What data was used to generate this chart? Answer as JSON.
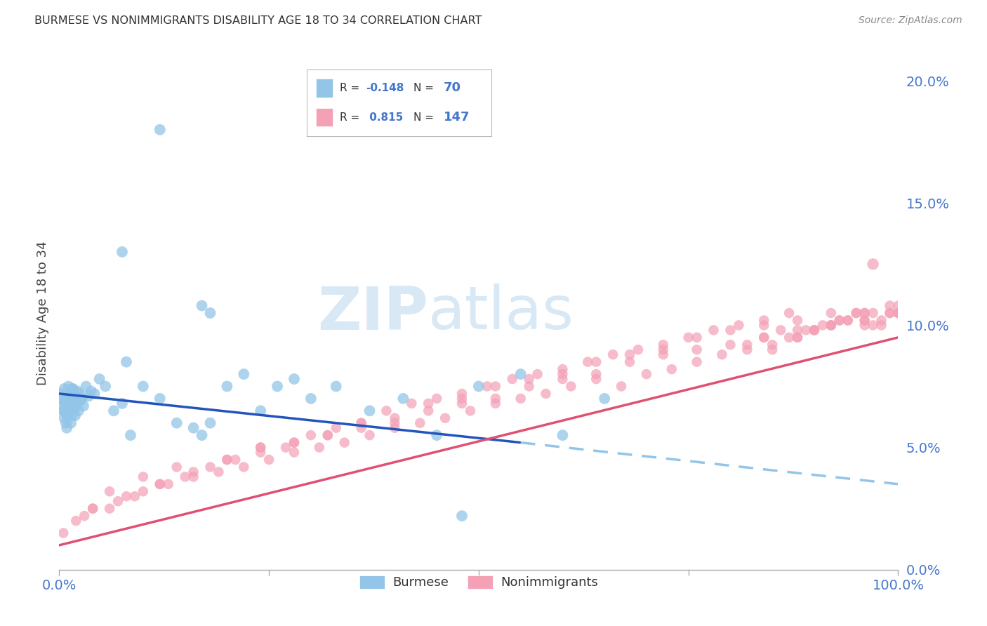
{
  "title": "BURMESE VS NONIMMIGRANTS DISABILITY AGE 18 TO 34 CORRELATION CHART",
  "source": "Source: ZipAtlas.com",
  "ylabel": "Disability Age 18 to 34",
  "y_tick_values": [
    0.0,
    5.0,
    10.0,
    15.0,
    20.0
  ],
  "x_range": [
    0,
    100
  ],
  "y_range": [
    0,
    21
  ],
  "burmese_color": "#92C5E8",
  "nonimm_color": "#F4A0B5",
  "burmese_line_color": "#2255BB",
  "nonimm_line_color": "#E05070",
  "dashed_line_color": "#92C5E8",
  "legend_burmese_label": "Burmese",
  "legend_nonimm_label": "Nonimmigrants",
  "R_burmese": -0.148,
  "N_burmese": 70,
  "R_nonimm": 0.815,
  "N_nonimm": 147,
  "watermark_zip": "ZIP",
  "watermark_atlas": "atlas",
  "background_color": "#FFFFFF",
  "grid_color": "#CCCCCC",
  "tick_label_color": "#4477CC",
  "title_color": "#333333",
  "burmese_x": [
    0.2,
    0.3,
    0.4,
    0.5,
    0.6,
    0.7,
    0.8,
    0.9,
    1.0,
    1.1,
    1.2,
    1.3,
    1.4,
    1.5,
    1.6,
    1.7,
    1.8,
    1.9,
    2.0,
    2.1,
    2.2,
    2.3,
    2.4,
    2.5,
    2.7,
    2.9,
    3.2,
    3.5,
    3.8,
    4.2,
    4.8,
    5.5,
    6.5,
    7.5,
    8.5,
    10.0,
    12.0,
    14.0,
    16.0,
    18.0,
    20.0,
    22.0,
    24.0,
    26.0,
    28.0,
    30.0,
    33.0,
    37.0,
    41.0,
    45.0,
    50.0,
    55.0,
    60.0,
    65.0,
    8.0,
    17.0,
    0.5,
    0.6,
    0.7,
    0.8,
    0.9,
    1.0,
    1.1,
    1.2,
    1.3,
    1.4,
    1.5,
    1.6,
    1.7,
    1.8
  ],
  "burmese_y": [
    7.0,
    7.2,
    6.8,
    6.5,
    6.2,
    7.0,
    6.4,
    6.8,
    7.1,
    6.5,
    6.9,
    7.2,
    6.7,
    6.3,
    7.4,
    7.0,
    6.6,
    6.3,
    7.1,
    6.8,
    7.3,
    6.5,
    7.2,
    6.9,
    7.0,
    6.7,
    7.5,
    7.1,
    7.3,
    7.2,
    7.8,
    7.5,
    6.5,
    6.8,
    5.5,
    7.5,
    7.0,
    6.0,
    5.8,
    6.0,
    7.5,
    8.0,
    6.5,
    7.5,
    7.8,
    7.0,
    7.5,
    6.5,
    7.0,
    5.5,
    7.5,
    8.0,
    5.5,
    7.0,
    8.5,
    5.5,
    6.5,
    7.4,
    6.8,
    6.0,
    5.8,
    6.3,
    7.5,
    7.2,
    6.5,
    6.0,
    6.8,
    7.4,
    7.0,
    6.6
  ],
  "burmese_outlier1_x": [
    12.0
  ],
  "burmese_outlier1_y": [
    18.0
  ],
  "burmese_outlier2_x": [
    7.5
  ],
  "burmese_outlier2_y": [
    13.0
  ],
  "burmese_outlier3_x": [
    17.0
  ],
  "burmese_outlier3_y": [
    10.8
  ],
  "burmese_outlier4_x": [
    18.0
  ],
  "burmese_outlier4_y": [
    10.5
  ],
  "burmese_outlier5_x": [
    48.0
  ],
  "burmese_outlier5_y": [
    2.2
  ],
  "nonimm_x": [
    0.5,
    2.0,
    4.0,
    7.0,
    10.0,
    13.0,
    16.0,
    19.0,
    22.0,
    25.0,
    28.0,
    31.0,
    34.0,
    37.0,
    40.0,
    43.0,
    46.0,
    49.0,
    52.0,
    55.0,
    58.0,
    61.0,
    64.0,
    67.0,
    70.0,
    73.0,
    76.0,
    79.0,
    82.0,
    85.0,
    88.0,
    90.0,
    92.0,
    94.0,
    95.0,
    96.0,
    97.0,
    98.0,
    99.0,
    100.0,
    3.0,
    6.0,
    9.0,
    12.0,
    15.0,
    18.0,
    21.0,
    24.0,
    27.0,
    30.0,
    33.0,
    36.0,
    39.0,
    42.0,
    45.0,
    48.0,
    51.0,
    54.0,
    57.0,
    60.0,
    63.0,
    66.0,
    69.0,
    72.0,
    75.0,
    78.0,
    81.0,
    84.0,
    87.0,
    90.0,
    93.0,
    96.0,
    99.0,
    82.0,
    84.0,
    86.0,
    88.0,
    90.0,
    92.0,
    94.0,
    96.0,
    98.0,
    100.0,
    85.0,
    87.0,
    89.0,
    91.0,
    93.0,
    95.0,
    97.0,
    99.0,
    20.0,
    24.0,
    28.0,
    32.0,
    36.0,
    40.0,
    44.0,
    48.0,
    52.0,
    56.0,
    60.0,
    64.0,
    68.0,
    72.0,
    76.0,
    80.0,
    84.0,
    88.0,
    92.0,
    96.0,
    100.0,
    4.0,
    8.0,
    12.0,
    16.0,
    20.0,
    24.0,
    28.0,
    32.0,
    36.0,
    40.0,
    44.0,
    48.0,
    52.0,
    56.0,
    60.0,
    64.0,
    68.0,
    72.0,
    76.0,
    80.0,
    84.0,
    88.0,
    92.0,
    96.0,
    100.0,
    6.0,
    10.0,
    14.0
  ],
  "nonimm_y": [
    1.5,
    2.0,
    2.5,
    2.8,
    3.2,
    3.5,
    3.8,
    4.0,
    4.2,
    4.5,
    4.8,
    5.0,
    5.2,
    5.5,
    5.8,
    6.0,
    6.2,
    6.5,
    6.8,
    7.0,
    7.2,
    7.5,
    7.8,
    7.5,
    8.0,
    8.2,
    8.5,
    8.8,
    9.0,
    9.2,
    9.5,
    9.8,
    10.0,
    10.2,
    10.5,
    10.0,
    10.5,
    10.2,
    10.5,
    10.5,
    2.2,
    2.5,
    3.0,
    3.5,
    3.8,
    4.2,
    4.5,
    4.8,
    5.0,
    5.5,
    5.8,
    6.0,
    6.5,
    6.8,
    7.0,
    7.2,
    7.5,
    7.8,
    8.0,
    8.2,
    8.5,
    8.8,
    9.0,
    9.2,
    9.5,
    9.8,
    10.0,
    10.2,
    10.5,
    9.8,
    10.2,
    10.5,
    10.8,
    9.2,
    9.5,
    9.8,
    9.5,
    9.8,
    10.0,
    10.2,
    10.5,
    10.0,
    10.5,
    9.0,
    9.5,
    9.8,
    10.0,
    10.2,
    10.5,
    10.0,
    10.5,
    4.5,
    5.0,
    5.2,
    5.5,
    5.8,
    6.0,
    6.5,
    6.8,
    7.0,
    7.5,
    7.8,
    8.0,
    8.5,
    8.8,
    9.0,
    9.2,
    9.5,
    9.8,
    10.0,
    10.2,
    10.5,
    2.5,
    3.0,
    3.5,
    4.0,
    4.5,
    5.0,
    5.2,
    5.5,
    6.0,
    6.2,
    6.8,
    7.0,
    7.5,
    7.8,
    8.0,
    8.5,
    8.8,
    9.0,
    9.5,
    9.8,
    10.0,
    10.2,
    10.5,
    10.2,
    10.8,
    3.2,
    3.8,
    4.2
  ],
  "nonimm_outlier_x": [
    97.0
  ],
  "nonimm_outlier_y": [
    12.5
  ],
  "blue_line_x0": 0,
  "blue_line_y0": 7.2,
  "blue_line_x1": 55,
  "blue_line_y1": 5.2,
  "blue_dash_x0": 55,
  "blue_dash_y0": 5.2,
  "blue_dash_x1": 100,
  "blue_dash_y1": 3.5,
  "pink_line_x0": 0,
  "pink_line_y0": 1.0,
  "pink_line_x1": 100,
  "pink_line_y1": 9.5
}
